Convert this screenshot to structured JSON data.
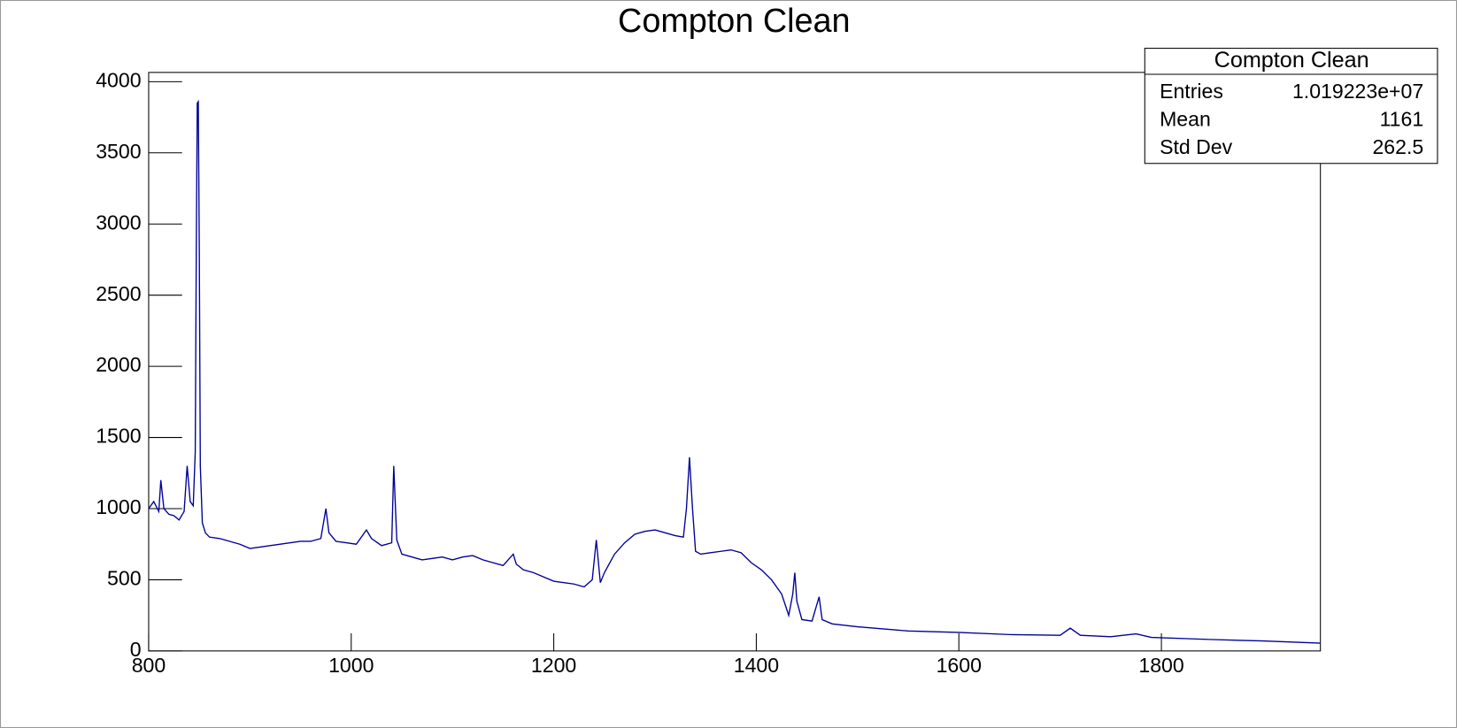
{
  "chart_data": {
    "type": "line",
    "title": "Compton Clean",
    "color": "#000099",
    "xlim": [
      800,
      1957
    ],
    "ylim": [
      0,
      4065
    ],
    "xticks": [
      800,
      1000,
      1200,
      1400,
      1600,
      1800
    ],
    "yticks": [
      0,
      500,
      1000,
      1500,
      2000,
      2500,
      3000,
      3500,
      4000
    ],
    "grid": false,
    "x": [
      800,
      805,
      810,
      812,
      815,
      820,
      825,
      830,
      835,
      838,
      841,
      844,
      846,
      847,
      848,
      849,
      850,
      851,
      853,
      856,
      860,
      870,
      880,
      890,
      900,
      910,
      920,
      930,
      940,
      950,
      960,
      970,
      975,
      978,
      985,
      995,
      1005,
      1015,
      1020,
      1030,
      1040,
      1042,
      1045,
      1050,
      1060,
      1070,
      1080,
      1090,
      1100,
      1110,
      1120,
      1130,
      1140,
      1150,
      1160,
      1163,
      1170,
      1180,
      1190,
      1200,
      1210,
      1220,
      1230,
      1238,
      1242,
      1246,
      1250,
      1260,
      1270,
      1280,
      1290,
      1300,
      1310,
      1320,
      1328,
      1331,
      1334,
      1337,
      1340,
      1345,
      1355,
      1365,
      1375,
      1385,
      1395,
      1405,
      1415,
      1425,
      1432,
      1436,
      1438,
      1440,
      1445,
      1455,
      1462,
      1465,
      1475,
      1500,
      1550,
      1600,
      1650,
      1700,
      1710,
      1720,
      1750,
      1775,
      1790,
      1850,
      1900,
      1957
    ],
    "series": [
      {
        "name": "Compton Clean",
        "color": "#000099",
        "values": [
          1000,
          1050,
          980,
          1200,
          1000,
          960,
          950,
          920,
          980,
          1300,
          1050,
          1020,
          1400,
          2800,
          3850,
          3860,
          2800,
          1300,
          900,
          830,
          800,
          790,
          770,
          750,
          720,
          730,
          740,
          750,
          760,
          770,
          770,
          790,
          1000,
          830,
          770,
          760,
          750,
          850,
          790,
          740,
          760,
          1300,
          780,
          680,
          660,
          640,
          650,
          660,
          640,
          660,
          670,
          640,
          620,
          600,
          680,
          610,
          570,
          550,
          520,
          490,
          480,
          470,
          450,
          500,
          780,
          480,
          550,
          680,
          760,
          820,
          840,
          850,
          830,
          810,
          800,
          1000,
          1360,
          1000,
          700,
          680,
          690,
          700,
          710,
          690,
          620,
          570,
          500,
          400,
          250,
          400,
          550,
          350,
          220,
          210,
          380,
          220,
          190,
          170,
          140,
          130,
          115,
          110,
          160,
          110,
          100,
          120,
          95,
          80,
          70,
          55
        ]
      }
    ],
    "stats_box": {
      "title": "Compton Clean",
      "rows": [
        {
          "label": "Entries",
          "value": "1.019223e+07"
        },
        {
          "label": "Mean",
          "value": "1161"
        },
        {
          "label": "Std Dev",
          "value": "262.5"
        }
      ]
    }
  }
}
